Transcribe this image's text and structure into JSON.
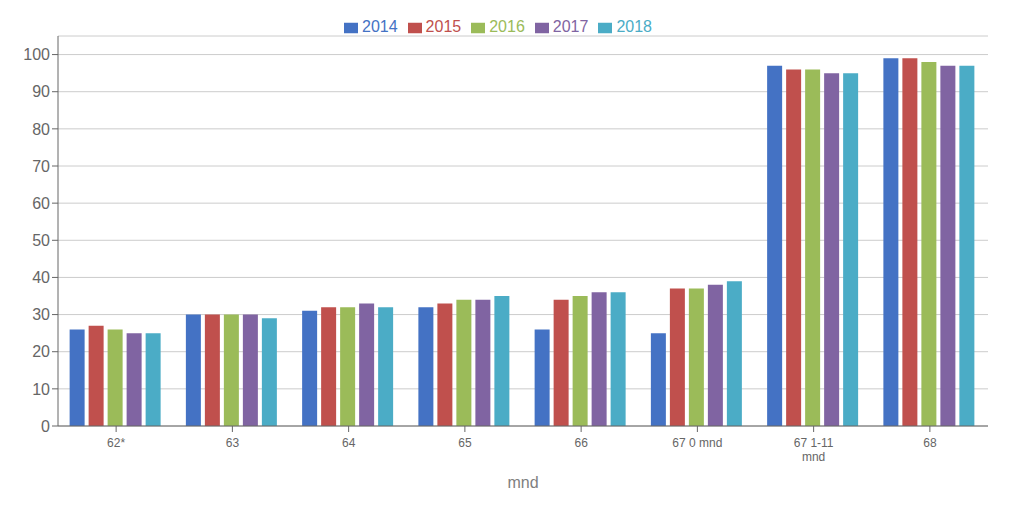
{
  "chart_data": {
    "type": "bar",
    "categories": [
      "62*",
      "63",
      "64",
      "65",
      "66",
      "67 0 mnd",
      "67 1-11\nmnd",
      "68"
    ],
    "series": [
      {
        "name": "2014",
        "color": "#4472C4",
        "values": [
          26,
          30,
          31,
          32,
          26,
          25,
          97,
          99
        ]
      },
      {
        "name": "2015",
        "color": "#C0504D",
        "values": [
          27,
          30,
          32,
          33,
          34,
          37,
          96,
          99
        ]
      },
      {
        "name": "2016",
        "color": "#9BBB59",
        "values": [
          26,
          30,
          32,
          34,
          35,
          37,
          96,
          98
        ]
      },
      {
        "name": "2017",
        "color": "#8064A2",
        "values": [
          25,
          30,
          33,
          34,
          36,
          38,
          95,
          97
        ]
      },
      {
        "name": "2018",
        "color": "#4BACC6",
        "values": [
          25,
          29,
          32,
          35,
          36,
          39,
          95,
          97
        ]
      }
    ],
    "xlabel": "mnd",
    "ylim": [
      0,
      105
    ],
    "yticks": [
      0,
      10,
      20,
      30,
      40,
      50,
      60,
      70,
      80,
      90,
      100
    ],
    "grid": true,
    "legend": "top"
  }
}
